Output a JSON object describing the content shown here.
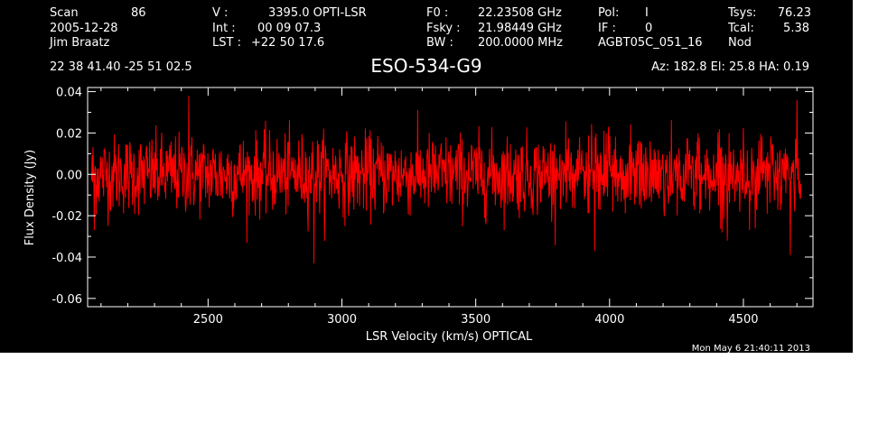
{
  "header": {
    "scan_label": "Scan",
    "scan_value": "86",
    "date": "2005-12-28",
    "observer": "Jim Braatz",
    "v_label": "V   :",
    "v_value": "3395.0 OPTI-LSR",
    "int_label": "Int  :",
    "int_value": "00 09 07.3",
    "lst_label": "LST :",
    "lst_value": "+22 50 17.6",
    "f0_label": "F0   :",
    "f0_value": "22.23508 GHz",
    "fsky_label": "Fsky :",
    "fsky_value": "21.98449 GHz",
    "bw_label": "BW   :",
    "bw_value": "200.0000 MHz",
    "pol_label": "Pol:",
    "pol_value": "I",
    "if_label": "IF :",
    "if_value": "0",
    "project": "AGBT05C_051_16",
    "tsys_label": "Tsys:",
    "tsys_value": "76.23",
    "tcal_label": "Tcal:",
    "tcal_value": "5.38",
    "mode": "Nod",
    "coords": "22 38 41.40  -25 51 02.5",
    "source": "ESO-534-G9",
    "az_el_ha": "Az: 182.8   El:  25.8   HA:  0.19"
  },
  "timestamp": "Mon May  6 21:40:11 2013",
  "colors": {
    "background": "#000000",
    "axes": "#ffffff",
    "trace": "#ff0000"
  },
  "chart_data": {
    "type": "line",
    "xlabel": "LSR Velocity (km/s) OPTICAL",
    "ylabel": "Flux Density (Jy)",
    "xlim": [
      2050,
      4760
    ],
    "ylim": [
      -0.064,
      0.042
    ],
    "x_ticks": [
      2500,
      3000,
      3500,
      4000,
      4500
    ],
    "x_tick_labels": [
      "2500",
      "3000",
      "3500",
      "4000",
      "4500"
    ],
    "y_ticks": [
      0.04,
      0.02,
      0.0,
      -0.02,
      -0.04,
      -0.06
    ],
    "y_tick_labels": [
      "0.04",
      "0.02",
      "0.00",
      "-0.02",
      "-0.04",
      "-0.06"
    ],
    "grid": false,
    "series": [
      {
        "color": "#ff0000",
        "x_start": 2065,
        "x_end": 4715,
        "mean": 0.0,
        "rms": 0.0095,
        "n_points": 1600,
        "notable_points": [
          {
            "x": 2895,
            "y": -0.043
          },
          {
            "x": 4675,
            "y": -0.039
          },
          {
            "x": 3945,
            "y": -0.037
          },
          {
            "x": 2428,
            "y": 0.038
          },
          {
            "x": 4700,
            "y": 0.036
          },
          {
            "x": 2075,
            "y": -0.027
          }
        ]
      }
    ]
  }
}
